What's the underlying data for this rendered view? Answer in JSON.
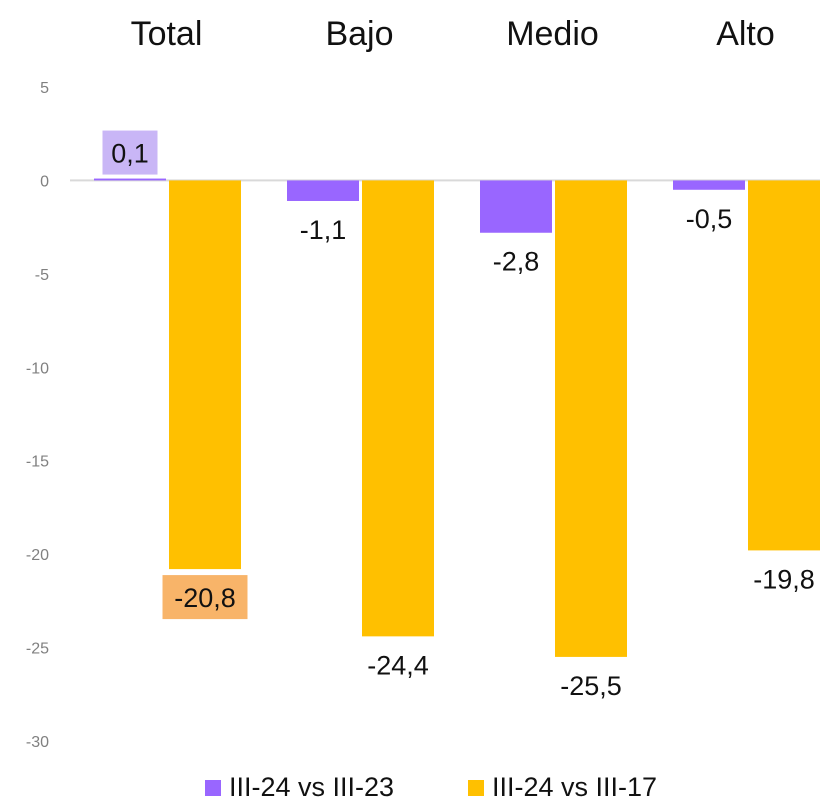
{
  "chart_data": {
    "type": "bar",
    "categories": [
      "Total",
      "Bajo",
      "Medio",
      "Alto"
    ],
    "series": [
      {
        "name": "III-24 vs III-23",
        "values": [
          0.1,
          -1.1,
          -2.8,
          -0.5
        ],
        "color": "#9966FF"
      },
      {
        "name": "III-24 vs III-17",
        "values": [
          -20.8,
          -24.4,
          -25.5,
          -19.8
        ],
        "color": "#FFC000"
      }
    ],
    "data_labels": [
      [
        "0,1",
        "-1,1",
        "-2,8",
        "-0,5"
      ],
      [
        "-20,8",
        "-24,4",
        "-25,5",
        "-19,8"
      ]
    ],
    "highlighted_labels": [
      {
        "series": 0,
        "category": 0,
        "color": "#C9B6F6"
      },
      {
        "series": 1,
        "category": 0,
        "color": "#F8B469"
      }
    ],
    "yticks": [
      "5",
      "0",
      "-5",
      "-10",
      "-15",
      "-20",
      "-25",
      "-30"
    ],
    "ylim": [
      -30,
      5
    ],
    "zero_line": true,
    "grid": false,
    "legend_position": "bottom"
  }
}
